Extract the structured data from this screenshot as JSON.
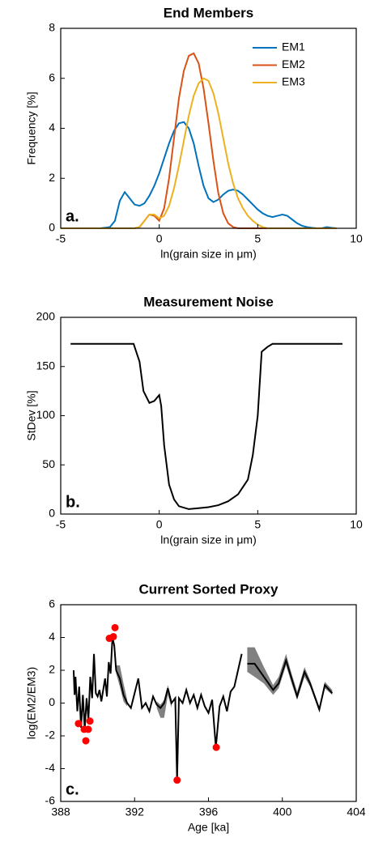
{
  "chart_data": [
    {
      "type": "line",
      "title": "End Members",
      "xlabel": "ln(grain size in μm)",
      "ylabel": "Frequency [%]",
      "annotation": "a.",
      "xlim": [
        -5,
        10
      ],
      "xticks": [
        -5,
        0,
        5,
        10
      ],
      "ylim": [
        0,
        8
      ],
      "yticks": [
        0,
        2,
        4,
        6,
        8
      ],
      "legend": "upper right",
      "x": [
        -5,
        -4,
        -3,
        -2.5,
        -2.25,
        -2,
        -1.75,
        -1.5,
        -1.25,
        -1,
        -0.75,
        -0.5,
        -0.25,
        0,
        0.25,
        0.5,
        0.75,
        1,
        1.25,
        1.5,
        1.75,
        2,
        2.25,
        2.5,
        2.75,
        3,
        3.25,
        3.5,
        3.75,
        4,
        4.25,
        4.5,
        4.75,
        5,
        5.25,
        5.5,
        5.75,
        6,
        6.25,
        6.5,
        6.75,
        7,
        7.25,
        7.5,
        7.75,
        8,
        8.25,
        8.5,
        8.75,
        9
      ],
      "series": [
        {
          "name": "EM1",
          "color": "#0072bd",
          "values": [
            0,
            0,
            0,
            0.05,
            0.3,
            1.1,
            1.45,
            1.2,
            0.95,
            0.9,
            1.0,
            1.3,
            1.7,
            2.2,
            2.8,
            3.4,
            3.9,
            4.2,
            4.25,
            4.0,
            3.4,
            2.5,
            1.7,
            1.2,
            1.05,
            1.15,
            1.35,
            1.5,
            1.55,
            1.5,
            1.35,
            1.15,
            0.95,
            0.75,
            0.6,
            0.5,
            0.45,
            0.5,
            0.55,
            0.5,
            0.35,
            0.2,
            0.1,
            0.05,
            0.02,
            0,
            0,
            0.05,
            0.02,
            0
          ]
        },
        {
          "name": "EM2",
          "color": "#d95319",
          "values": [
            0,
            0,
            0,
            0,
            0,
            0,
            0,
            0,
            0,
            0.05,
            0.3,
            0.55,
            0.5,
            0.3,
            0.8,
            2.0,
            3.6,
            5.2,
            6.3,
            6.9,
            7.0,
            6.6,
            5.6,
            4.2,
            2.7,
            1.4,
            0.6,
            0.2,
            0.05,
            0,
            0,
            0,
            0,
            0,
            0,
            0,
            0,
            0,
            0,
            0,
            0,
            0,
            0,
            0,
            0,
            0,
            0,
            0,
            0,
            0
          ]
        },
        {
          "name": "EM3",
          "color": "#edb120",
          "values": [
            0,
            0,
            0,
            0,
            0,
            0,
            0,
            0,
            0,
            0.05,
            0.3,
            0.55,
            0.55,
            0.4,
            0.5,
            0.9,
            1.6,
            2.5,
            3.5,
            4.5,
            5.3,
            5.8,
            6.0,
            5.9,
            5.4,
            4.6,
            3.6,
            2.6,
            1.8,
            1.2,
            0.8,
            0.5,
            0.3,
            0.15,
            0.05,
            0,
            0,
            0,
            0,
            0,
            0,
            0,
            0,
            0,
            0,
            0,
            0,
            0,
            0,
            0
          ]
        }
      ]
    },
    {
      "type": "line",
      "title": "Measurement Noise",
      "xlabel": "ln(grain size in μm)",
      "ylabel": "StDev [%]",
      "annotation": "b.",
      "xlim": [
        -5,
        10
      ],
      "xticks": [
        -5,
        0,
        5,
        10
      ],
      "ylim": [
        0,
        200
      ],
      "yticks": [
        0,
        50,
        100,
        150,
        200
      ],
      "x": [
        -4.5,
        -1.3,
        -1,
        -0.8,
        -0.5,
        -0.25,
        0,
        0.1,
        0.25,
        0.5,
        0.75,
        1,
        1.5,
        2,
        2.5,
        3,
        3.5,
        4,
        4.5,
        4.75,
        5,
        5.2,
        5.5,
        5.75,
        9.3
      ],
      "series": [
        {
          "color": "#000000",
          "values": [
            173,
            173,
            155,
            125,
            113,
            115,
            121,
            110,
            70,
            30,
            15,
            8,
            5,
            6,
            7,
            9,
            13,
            20,
            35,
            60,
            100,
            165,
            170,
            173,
            173
          ]
        }
      ]
    },
    {
      "type": "line",
      "title": "Current Sorted Proxy",
      "xlabel": "Age [ka]",
      "ylabel": "log(EM2/EM3)",
      "annotation": "c.",
      "xlim": [
        388,
        404
      ],
      "xticks": [
        388,
        392,
        396,
        400,
        404
      ],
      "ylim": [
        -6,
        6
      ],
      "yticks": [
        -6,
        -4,
        -2,
        0,
        2,
        4,
        6
      ],
      "x": [
        388.7,
        388.75,
        388.8,
        388.9,
        389.0,
        389.1,
        389.2,
        389.3,
        389.4,
        389.5,
        389.6,
        389.7,
        389.8,
        389.9,
        390.0,
        390.1,
        390.2,
        390.3,
        390.4,
        390.5,
        390.6,
        390.7,
        390.8,
        390.9,
        391.0,
        391.2,
        391.4,
        391.6,
        391.8,
        392.0,
        392.2,
        392.4,
        392.6,
        392.8,
        393.0,
        393.2,
        393.4,
        393.6,
        393.8,
        394.0,
        394.2,
        394.3,
        394.4,
        394.6,
        394.8,
        395.0,
        395.2,
        395.4,
        395.6,
        395.8,
        396.0,
        396.2,
        396.4,
        396.6,
        396.8,
        397.0,
        397.2,
        397.4,
        397.6,
        397.8,
        397.95,
        398.1,
        398.5,
        399,
        399.5,
        399.8,
        400.2,
        400.5,
        400.8,
        401.2,
        401.5,
        402,
        402.3,
        402.7
      ],
      "bands": [
        {
          "color": "#808080",
          "x": [
            390.9,
            391.0,
            391.2,
            391.4,
            391.6
          ],
          "lower": [
            3.3,
            1.8,
            1.0,
            0.1,
            -0.2
          ],
          "upper": [
            3.7,
            2.3,
            2.3,
            1.2,
            0.2
          ]
        },
        {
          "color": "#808080",
          "x": [
            393.2,
            393.4,
            393.6,
            393.8,
            394.0
          ],
          "lower": [
            -0.3,
            -0.9,
            -0.9,
            0.5,
            -0.3
          ],
          "upper": [
            0.1,
            -0.1,
            0.2,
            1.1,
            0.2
          ]
        },
        {
          "color": "#808080",
          "x": [
            398.1,
            398.5,
            399,
            399.5,
            399.8,
            400.2,
            400.5,
            400.8,
            401.2,
            401.5,
            402,
            402.3,
            402.7
          ],
          "lower": [
            1.9,
            1.6,
            1.2,
            0.5,
            0.9,
            2.3,
            1.2,
            0.2,
            1.6,
            1.0,
            -0.5,
            0.9,
            0.5
          ],
          "upper": [
            3.4,
            3.4,
            2.2,
            1.1,
            1.6,
            3.0,
            1.8,
            0.7,
            2.2,
            1.4,
            -0.2,
            1.3,
            0.8
          ]
        }
      ],
      "series": [
        {
          "color": "#000000",
          "values": [
            2.0,
            0.5,
            1.6,
            -0.5,
            1.0,
            -1.5,
            0.5,
            -1.6,
            0.3,
            -1.0,
            1.6,
            0.3,
            3.0,
            0.6,
            0.4,
            0.8,
            0.1,
            0.8,
            1.5,
            0.4,
            2.5,
            1.8,
            4.0,
            3.5,
            2.0,
            1.5,
            0.5,
            0.0,
            -0.3,
            0.6,
            1.5,
            -0.3,
            0.0,
            -0.5,
            0.4,
            -0.1,
            -0.3,
            0.0,
            0.9,
            0.0,
            0.3,
            -4.7,
            0.3,
            0.0,
            0.8,
            0.0,
            0.5,
            -0.3,
            0.5,
            -0.2,
            -0.6,
            0.2,
            -2.7,
            -0.2,
            0.4,
            -0.5,
            0.7,
            1.0,
            2.0,
            3.0,
            null,
            2.4,
            2.4,
            1.6,
            0.8,
            1.2,
            2.6,
            1.5,
            0.4,
            1.9,
            1.2,
            -0.4,
            1.1,
            0.6
          ]
        }
      ],
      "points": {
        "color": "#ff0000",
        "x": [
          388.96,
          389.27,
          389.36,
          389.49,
          389.58,
          390.63,
          390.85,
          390.94,
          394.3,
          396.42
        ],
        "values": [
          -1.25,
          -1.6,
          -2.3,
          -1.6,
          -1.1,
          3.95,
          4.05,
          4.6,
          -4.7,
          -2.7
        ]
      }
    }
  ]
}
